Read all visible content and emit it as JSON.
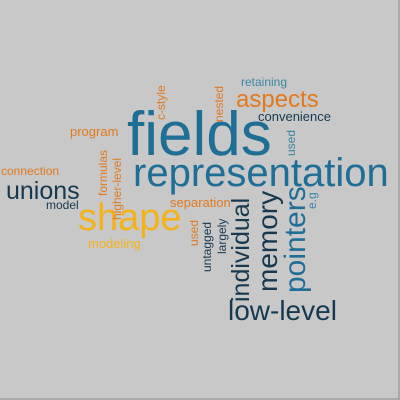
{
  "colors": {
    "background": "#c8c8c8",
    "blue": "#1f6e96",
    "navy": "#16394f",
    "teal": "#3d86a3",
    "orange": "#e07a1f",
    "yellow": "#f2b21a"
  },
  "words": {
    "fields": "fields",
    "representation": "representation",
    "shape": "shape",
    "aspects": "aspects",
    "unions": "unions",
    "pointers": "pointers",
    "memory": "memory",
    "individual": "individual",
    "low_level": "low-level",
    "retaining": "retaining",
    "convenience": "convenience",
    "nested": "nested",
    "c_style": "c-style",
    "program": "program",
    "connection": "connection",
    "formulas": "formulas",
    "higher_level": "higher-level",
    "model": "model",
    "separation": "separation",
    "used_1": "used",
    "used_2": "used",
    "untagged": "untagged",
    "largely": "largely",
    "eg": "e.g",
    "modeling": "modeling"
  }
}
